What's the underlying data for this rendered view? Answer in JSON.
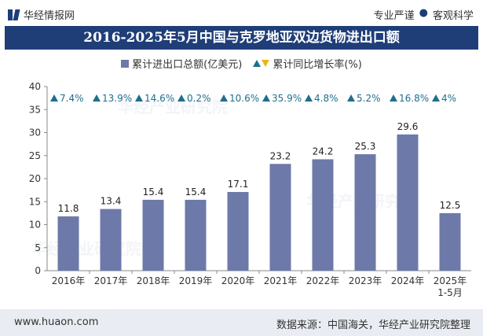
{
  "header": {
    "logo_text": "华经情报网",
    "slogan_left": "专业严谨",
    "slogan_sep": "●",
    "slogan_right": "客观科学"
  },
  "colors": {
    "bar": "#6d79a8",
    "title_bg": "#1f3e78",
    "triangle_up": "#1f6f8b",
    "triangle_down": "#e8b70f"
  },
  "chart_data": {
    "type": "bar",
    "title": "2016-2025年5月中国与克罗地亚双边货物进出口额",
    "categories": [
      "2016年",
      "2017年",
      "2018年",
      "2019年",
      "2020年",
      "2021年",
      "2022年",
      "2023年",
      "2024年",
      "2025年"
    ],
    "category_sublabels": [
      "",
      "",
      "",
      "",
      "",
      "",
      "",
      "",
      "",
      "1-5月"
    ],
    "series": [
      {
        "name": "累计进出口总额(亿美元)",
        "values": [
          11.8,
          13.4,
          15.4,
          15.4,
          17.1,
          23.2,
          24.2,
          25.3,
          29.6,
          12.5
        ]
      },
      {
        "name": "累计同比增长率(%)",
        "values": [
          7.4,
          13.9,
          14.6,
          0.2,
          10.6,
          35.9,
          4.8,
          5.2,
          16.8,
          4
        ],
        "labels": [
          "7.4%",
          "13.9%",
          "14.6%",
          "0.2%",
          "10.6%",
          "35.9%",
          "4.8%",
          "5.2%",
          "16.8%",
          "4%"
        ]
      }
    ],
    "ylim": [
      0,
      40
    ],
    "yticks": [
      0,
      5,
      10,
      15,
      20,
      25,
      30,
      35,
      40
    ],
    "legend_position": "top"
  },
  "footer": {
    "website": "www.huaon.com",
    "source": "数据来源：中国海关，华经产业研究院整理"
  }
}
